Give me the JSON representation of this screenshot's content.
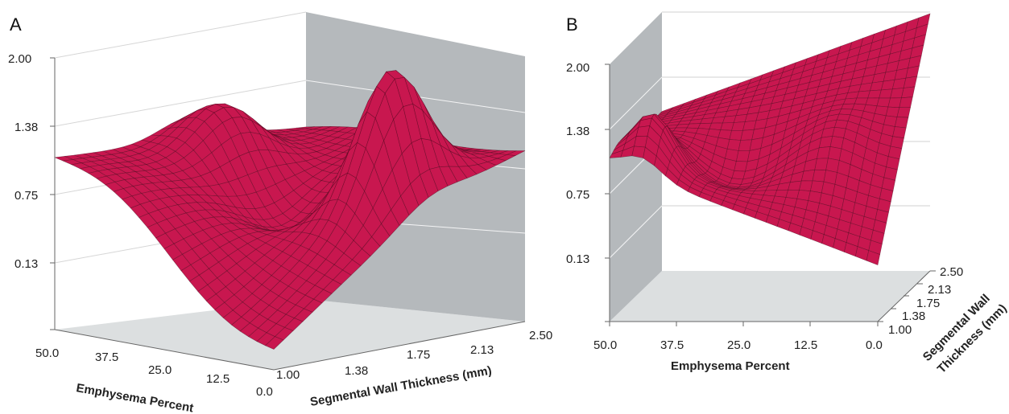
{
  "chart_data": [
    {
      "panel": "A",
      "type": "surface",
      "title": "",
      "xlabel": "Emphysema Percent",
      "ylabel": "Segmental Wall Thickness (mm)",
      "zlabel": "",
      "x_ticks": [
        "50.0",
        "37.5",
        "25.0",
        "12.5",
        "0.0"
      ],
      "y_ticks": [
        "1.00",
        "1.38",
        "1.75",
        "2.13",
        "2.50"
      ],
      "z_ticks": [
        "2.00",
        "1.38",
        "0.75",
        "0.13"
      ],
      "xlim": [
        50,
        0
      ],
      "ylim": [
        1.0,
        2.5
      ],
      "zlim": [
        -0.5,
        2.0
      ],
      "surface_color": "#c8174f",
      "wall_color": "#b5b9bc",
      "floor_color": "#dcdfe0",
      "surface_samples": [
        {
          "emphysema": 50.0,
          "thickness": 1.0,
          "value": 1.08
        },
        {
          "emphysema": 0.0,
          "thickness": 1.0,
          "value": -0.35
        },
        {
          "emphysema": 0.0,
          "thickness": 2.5,
          "value": 0.9
        },
        {
          "emphysema": 50.0,
          "thickness": 2.5,
          "value": 1.1
        },
        {
          "emphysema": 10.0,
          "thickness": 1.9,
          "value": 1.95
        }
      ]
    },
    {
      "panel": "B",
      "type": "surface",
      "title": "",
      "xlabel": "Emphysema Percent",
      "ylabel": "Segmental Wall Thickness (mm)",
      "zlabel": "",
      "x_ticks": [
        "50.0",
        "37.5",
        "25.0",
        "12.5",
        "0.0"
      ],
      "y_ticks": [
        "1.00",
        "1.38",
        "1.75",
        "2.13",
        "2.50"
      ],
      "z_ticks": [
        "2.00",
        "1.38",
        "0.75",
        "0.13"
      ],
      "xlim": [
        50,
        0
      ],
      "ylim": [
        1.0,
        2.5
      ],
      "zlim": [
        -0.5,
        2.0
      ],
      "surface_color": "#c8174f",
      "wall_color": "#b5b9bc",
      "floor_color": "#dcdfe0",
      "surface_samples": [
        {
          "emphysema": 50.0,
          "thickness": 1.0,
          "value": 1.05
        },
        {
          "emphysema": 0.0,
          "thickness": 1.0,
          "value": 0.0
        },
        {
          "emphysema": 0.0,
          "thickness": 2.5,
          "value": 1.95
        },
        {
          "emphysema": 50.0,
          "thickness": 2.5,
          "value": 1.2
        }
      ]
    }
  ],
  "panels": {
    "a": {
      "letter": "A",
      "xlabel": "Emphysema Percent",
      "ylabel": "Segmental Wall Thickness (mm)",
      "x_ticks": [
        "50.0",
        "37.5",
        "25.0",
        "12.5",
        "0.0"
      ],
      "y_ticks": [
        "1.00",
        "1.38",
        "1.75",
        "2.13",
        "2.50"
      ],
      "z_ticks": [
        "2.00",
        "1.38",
        "0.75",
        "0.13"
      ]
    },
    "b": {
      "letter": "B",
      "xlabel": "Emphysema Percent",
      "ylabel_line1": "Segmental Wall",
      "ylabel_line2": "Thickness (mm)",
      "x_ticks": [
        "50.0",
        "37.5",
        "25.0",
        "12.5",
        "0.0"
      ],
      "y_ticks": [
        "1.00",
        "1.38",
        "1.75",
        "2.13",
        "2.50"
      ],
      "z_ticks": [
        "2.00",
        "1.38",
        "0.75",
        "0.13"
      ]
    }
  }
}
